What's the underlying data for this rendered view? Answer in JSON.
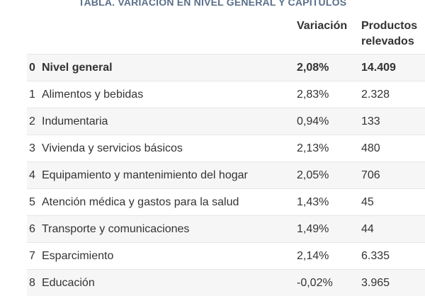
{
  "title": "TABLA. VARIACION EN NIVEL GENERAL Y CAPITULOS",
  "headers": {
    "variacion": "Variación",
    "productos": "Productos relevados"
  },
  "rows": [
    {
      "num": "0",
      "name": "Nivel general",
      "variacion": "2,08%",
      "productos": "14.409"
    },
    {
      "num": "1",
      "name": "Alimentos y bebidas",
      "variacion": "2,83%",
      "productos": "2.328"
    },
    {
      "num": "2",
      "name": "Indumentaria",
      "variacion": "0,94%",
      "productos": "133"
    },
    {
      "num": "3",
      "name": "Vivienda y servicios básicos",
      "variacion": "2,13%",
      "productos": "480"
    },
    {
      "num": "4",
      "name": "Equipamiento y mantenimiento del hogar",
      "variacion": "2,05%",
      "productos": "706"
    },
    {
      "num": "5",
      "name": "Atención médica y gastos para la salud",
      "variacion": "1,43%",
      "productos": "45"
    },
    {
      "num": "6",
      "name": "Transporte y comunicaciones",
      "variacion": "1,49%",
      "productos": "44"
    },
    {
      "num": "7",
      "name": "Esparcimiento",
      "variacion": "2,14%",
      "productos": "6.335"
    },
    {
      "num": "8",
      "name": "Educación",
      "variacion": "-0,02%",
      "productos": "3.965"
    }
  ]
}
